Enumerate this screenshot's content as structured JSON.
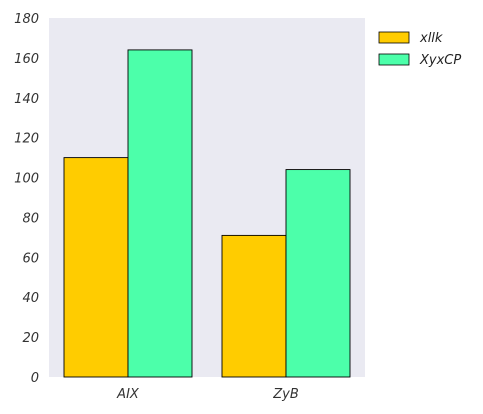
{
  "chart_data": {
    "type": "bar",
    "title": "",
    "xlabel": "",
    "ylabel": "",
    "categories": [
      "AIX",
      "ZyB"
    ],
    "series": [
      {
        "name": "xllk",
        "values": [
          110,
          71
        ],
        "color": "#FFCC00"
      },
      {
        "name": "XyxCP",
        "values": [
          164,
          104
        ],
        "color": "#4CFFAA"
      }
    ],
    "ylim": [
      0,
      180
    ],
    "yticks": [
      0,
      20,
      40,
      60,
      80,
      100,
      120,
      140,
      160,
      180
    ],
    "grid": false,
    "legend_position": "top-right outside",
    "plot_background": "#EAEAF2",
    "bar_edge_color": "#000000"
  }
}
